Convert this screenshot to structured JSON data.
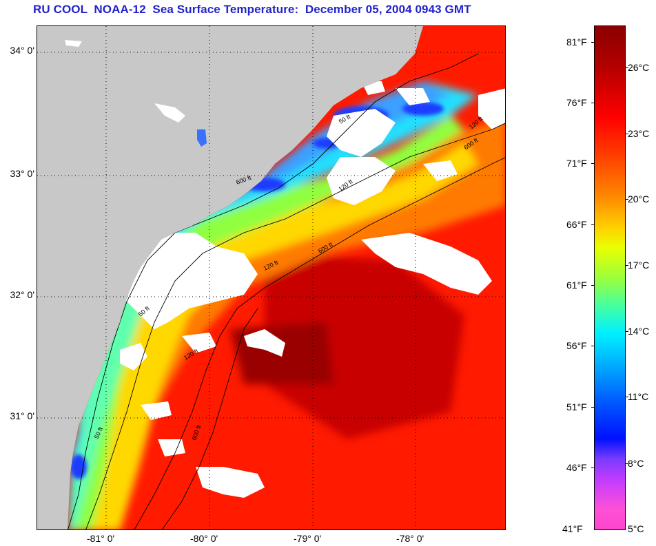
{
  "title": "RU COOL  NOAA-12  Sea Surface Temperature:  December 05, 2004 0943 GMT",
  "map": {
    "lat_labels": [
      "34° 0'",
      "33° 0'",
      "32° 0'",
      "31° 0'"
    ],
    "lon_labels": [
      "-81° 0'",
      "-80° 0'",
      "-79° 0'",
      "-78° 0'"
    ],
    "contour_labels": [
      "50 ft",
      "120 ft",
      "600 ft",
      "120 ft",
      "600 ft",
      "120 ft",
      "600 ft",
      "50 ft",
      "120 ft",
      "50 ft",
      "600 ft"
    ],
    "colors": {
      "land": "#c8c8c8",
      "cloud": "#ffffff",
      "warm": "#ff1a00",
      "dark_warm": "#a80000",
      "cool": "#00b8ff",
      "mid": "#ffe000"
    }
  },
  "colorbar": {
    "fahrenheit_labels": [
      "81°F",
      "76°F",
      "71°F",
      "66°F",
      "61°F",
      "56°F",
      "51°F",
      "46°F",
      "41°F"
    ],
    "celsius_labels": [
      "26°C",
      "23°C",
      "20°C",
      "17°C",
      "14°C",
      "11°C",
      "8°C",
      "5°C"
    ]
  }
}
